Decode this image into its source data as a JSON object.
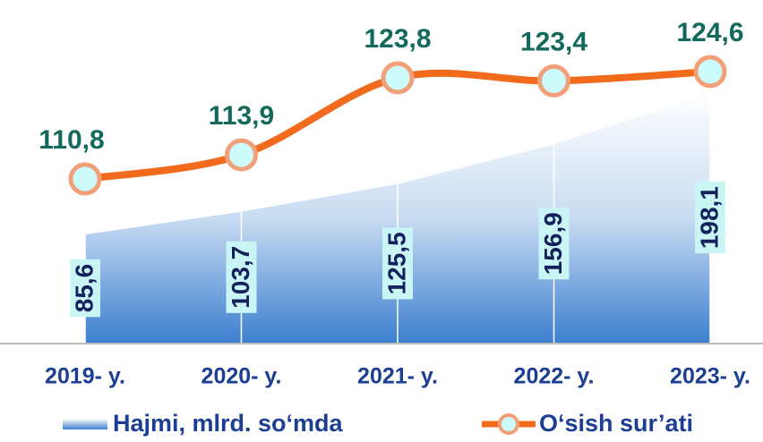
{
  "chart_data": {
    "type": "area-line",
    "categories": [
      "2019- y.",
      "2020- y.",
      "2021- y.",
      "2022- y.",
      "2023- y."
    ],
    "series": [
      {
        "name": "Hajmi, mlrd. so‘mda",
        "type": "area",
        "color": "#3d7fd0",
        "values": [
          85.6,
          103.7,
          125.5,
          156.9,
          198.1
        ],
        "value_labels": [
          "85,6",
          "103,7",
          "125,5",
          "156,9",
          "198,1"
        ]
      },
      {
        "name": "O‘sish sur’ati",
        "type": "line",
        "axis": "y2",
        "color": "#f26a1b",
        "values": [
          110.8,
          113.9,
          123.8,
          123.4,
          124.6
        ],
        "value_labels": [
          "110,8",
          "113,9",
          "123,8",
          "123,4",
          "124,6"
        ]
      }
    ],
    "ylim": [
      0,
      250
    ],
    "y2lim": [
      100,
      130
    ]
  }
}
